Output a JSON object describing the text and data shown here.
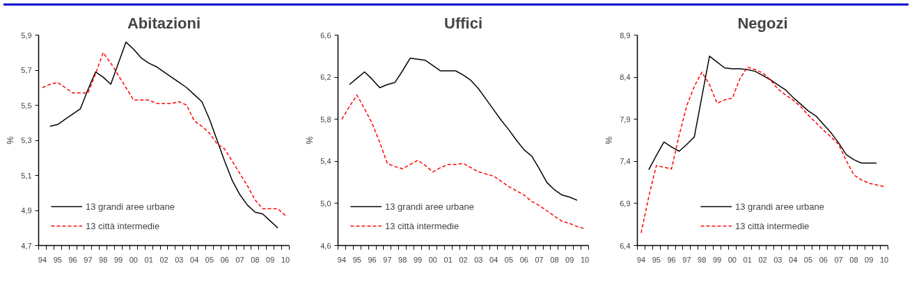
{
  "chart_data": [
    {
      "type": "line",
      "title": "Abitazioni",
      "ylabel": "%",
      "legend": "bottom left",
      "grid": false,
      "xlim": [
        1993.75,
        2010.25
      ],
      "xticks": [
        {
          "value": 1993.75,
          "label": null
        },
        {
          "value": 1994,
          "label": "94"
        },
        {
          "value": 1994.25,
          "label": null
        },
        {
          "value": 1994.75,
          "label": null
        },
        {
          "value": 1995,
          "label": "95"
        },
        {
          "value": 1995.25,
          "label": null
        },
        {
          "value": 1995.75,
          "label": null
        },
        {
          "value": 1996,
          "label": "96"
        },
        {
          "value": 1996.25,
          "label": null
        },
        {
          "value": 1996.75,
          "label": null
        },
        {
          "value": 1997,
          "label": "97"
        },
        {
          "value": 1997.25,
          "label": null
        },
        {
          "value": 1997.75,
          "label": null
        },
        {
          "value": 1998,
          "label": "98"
        },
        {
          "value": 1998.25,
          "label": null
        },
        {
          "value": 1998.75,
          "label": null
        },
        {
          "value": 1999,
          "label": "99"
        },
        {
          "value": 1999.25,
          "label": null
        },
        {
          "value": 1999.75,
          "label": null
        },
        {
          "value": 2000,
          "label": "00"
        },
        {
          "value": 2000.25,
          "label": null
        },
        {
          "value": 2000.75,
          "label": null
        },
        {
          "value": 2001,
          "label": "01"
        },
        {
          "value": 2001.25,
          "label": null
        },
        {
          "value": 2001.75,
          "label": null
        },
        {
          "value": 2002,
          "label": "02"
        },
        {
          "value": 2002.25,
          "label": null
        },
        {
          "value": 2002.75,
          "label": null
        },
        {
          "value": 2003,
          "label": "03"
        },
        {
          "value": 2003.25,
          "label": null
        },
        {
          "value": 2003.75,
          "label": null
        },
        {
          "value": 2004,
          "label": "04"
        },
        {
          "value": 2004.25,
          "label": null
        },
        {
          "value": 2004.75,
          "label": null
        },
        {
          "value": 2005,
          "label": "05"
        },
        {
          "value": 2005.25,
          "label": null
        },
        {
          "value": 2005.75,
          "label": null
        },
        {
          "value": 2006,
          "label": "06"
        },
        {
          "value": 2006.25,
          "label": null
        },
        {
          "value": 2006.75,
          "label": null
        },
        {
          "value": 2007,
          "label": "07"
        },
        {
          "value": 2007.25,
          "label": null
        },
        {
          "value": 2007.75,
          "label": null
        },
        {
          "value": 2008,
          "label": "08"
        },
        {
          "value": 2008.25,
          "label": null
        },
        {
          "value": 2008.75,
          "label": null
        },
        {
          "value": 2009,
          "label": "09"
        },
        {
          "value": 2009.25,
          "label": null
        },
        {
          "value": 2009.75,
          "label": null
        },
        {
          "value": 2010,
          "label": "10"
        },
        {
          "value": 2010.25,
          "label": null
        }
      ],
      "ylim": [
        4.7,
        5.9
      ],
      "yticks": [
        {
          "value": 4.7,
          "label": "4,7"
        },
        {
          "value": 4.9,
          "label": "4,9"
        },
        {
          "value": 5.1,
          "label": "5,1"
        },
        {
          "value": 5.3,
          "label": "5,3"
        },
        {
          "value": 5.5,
          "label": "5,5"
        },
        {
          "value": 5.7,
          "label": "5,7"
        },
        {
          "value": 5.9,
          "label": "5,9"
        }
      ],
      "series": [
        {
          "name": "13 grandi aree urbane",
          "color": "#000000",
          "line_style": "solid",
          "x": [
            1994.5,
            1995,
            1995.5,
            1996,
            1996.5,
            1997,
            1997.5,
            1998,
            1998.5,
            1999,
            1999.5,
            2000,
            2000.5,
            2001,
            2001.5,
            2002,
            2002.5,
            2003,
            2003.5,
            2004,
            2004.5,
            2005,
            2005.5,
            2006,
            2006.5,
            2007,
            2007.5,
            2008,
            2008.5,
            2009,
            2009.5
          ],
          "values": [
            5.38,
            5.39,
            5.42,
            5.45,
            5.48,
            5.59,
            5.69,
            5.66,
            5.62,
            5.74,
            5.86,
            5.82,
            5.77,
            5.74,
            5.72,
            5.69,
            5.66,
            5.63,
            5.6,
            5.56,
            5.52,
            5.42,
            5.3,
            5.18,
            5.07,
            4.99,
            4.93,
            4.89,
            4.88,
            4.84,
            4.8
          ]
        },
        {
          "name": "13 città intermedie",
          "color": "#ff0000",
          "line_style": "dashed",
          "x": [
            1994,
            1994.5,
            1995,
            1995.5,
            1996,
            1996.5,
            1997,
            1997.5,
            1998,
            1998.5,
            1999,
            1999.5,
            2000,
            2000.5,
            2001,
            2001.5,
            2002,
            2002.5,
            2003,
            2003.5,
            2004,
            2004.5,
            2005,
            2005.5,
            2006,
            2006.5,
            2007,
            2007.5,
            2008,
            2008.5,
            2009,
            2009.5,
            2010
          ],
          "values": [
            5.6,
            5.62,
            5.63,
            5.6,
            5.57,
            5.57,
            5.57,
            5.68,
            5.8,
            5.74,
            5.67,
            5.6,
            5.53,
            5.53,
            5.53,
            5.51,
            5.51,
            5.51,
            5.52,
            5.5,
            5.41,
            5.38,
            5.34,
            5.28,
            5.25,
            5.18,
            5.11,
            5.04,
            4.96,
            4.91,
            4.91,
            4.91,
            4.87
          ]
        }
      ]
    },
    {
      "type": "line",
      "title": "Uffici",
      "ylabel": "%",
      "legend": "bottom left",
      "grid": false,
      "xlim": [
        1993.75,
        2010.25
      ],
      "xticks": [
        {
          "value": 1993.75,
          "label": null
        },
        {
          "value": 1994,
          "label": "94"
        },
        {
          "value": 1994.25,
          "label": null
        },
        {
          "value": 1994.75,
          "label": null
        },
        {
          "value": 1995,
          "label": "95"
        },
        {
          "value": 1995.25,
          "label": null
        },
        {
          "value": 1995.75,
          "label": null
        },
        {
          "value": 1996,
          "label": "96"
        },
        {
          "value": 1996.25,
          "label": null
        },
        {
          "value": 1996.75,
          "label": null
        },
        {
          "value": 1997,
          "label": "97"
        },
        {
          "value": 1997.25,
          "label": null
        },
        {
          "value": 1997.75,
          "label": null
        },
        {
          "value": 1998,
          "label": "98"
        },
        {
          "value": 1998.25,
          "label": null
        },
        {
          "value": 1998.75,
          "label": null
        },
        {
          "value": 1999,
          "label": "99"
        },
        {
          "value": 1999.25,
          "label": null
        },
        {
          "value": 1999.75,
          "label": null
        },
        {
          "value": 2000,
          "label": "00"
        },
        {
          "value": 2000.25,
          "label": null
        },
        {
          "value": 2000.75,
          "label": null
        },
        {
          "value": 2001,
          "label": "01"
        },
        {
          "value": 2001.25,
          "label": null
        },
        {
          "value": 2001.75,
          "label": null
        },
        {
          "value": 2002,
          "label": "02"
        },
        {
          "value": 2002.25,
          "label": null
        },
        {
          "value": 2002.75,
          "label": null
        },
        {
          "value": 2003,
          "label": "03"
        },
        {
          "value": 2003.25,
          "label": null
        },
        {
          "value": 2003.75,
          "label": null
        },
        {
          "value": 2004,
          "label": "04"
        },
        {
          "value": 2004.25,
          "label": null
        },
        {
          "value": 2004.75,
          "label": null
        },
        {
          "value": 2005,
          "label": "05"
        },
        {
          "value": 2005.25,
          "label": null
        },
        {
          "value": 2005.75,
          "label": null
        },
        {
          "value": 2006,
          "label": "06"
        },
        {
          "value": 2006.25,
          "label": null
        },
        {
          "value": 2006.75,
          "label": null
        },
        {
          "value": 2007,
          "label": "07"
        },
        {
          "value": 2007.25,
          "label": null
        },
        {
          "value": 2007.75,
          "label": null
        },
        {
          "value": 2008,
          "label": "08"
        },
        {
          "value": 2008.25,
          "label": null
        },
        {
          "value": 2008.75,
          "label": null
        },
        {
          "value": 2009,
          "label": "09"
        },
        {
          "value": 2009.25,
          "label": null
        },
        {
          "value": 2009.75,
          "label": null
        },
        {
          "value": 2010,
          "label": "10"
        },
        {
          "value": 2010.25,
          "label": null
        }
      ],
      "ylim": [
        4.6,
        6.6
      ],
      "yticks": [
        {
          "value": 4.6,
          "label": "4,6"
        },
        {
          "value": 5.0,
          "label": "5,0"
        },
        {
          "value": 5.4,
          "label": "5,4"
        },
        {
          "value": 5.8,
          "label": "5,8"
        },
        {
          "value": 6.2,
          "label": "6,2"
        },
        {
          "value": 6.6,
          "label": "6,6"
        }
      ],
      "series": [
        {
          "name": "13 grandi aree urbane",
          "color": "#000000",
          "line_style": "solid",
          "x": [
            1994.5,
            1995,
            1995.5,
            1996,
            1996.5,
            1997,
            1997.5,
            1998,
            1998.5,
            1999,
            1999.5,
            2000,
            2000.5,
            2001,
            2001.5,
            2002,
            2002.5,
            2003,
            2003.5,
            2004,
            2004.5,
            2005,
            2005.5,
            2006,
            2006.5,
            2007,
            2007.5,
            2008,
            2008.5,
            2009,
            2009.5
          ],
          "values": [
            6.13,
            6.19,
            6.25,
            6.18,
            6.1,
            6.13,
            6.15,
            6.26,
            6.38,
            6.37,
            6.36,
            6.31,
            6.26,
            6.26,
            6.26,
            6.22,
            6.17,
            6.09,
            5.99,
            5.89,
            5.79,
            5.7,
            5.6,
            5.51,
            5.45,
            5.33,
            5.2,
            5.13,
            5.08,
            5.06,
            5.03
          ]
        },
        {
          "name": "13 città intermedie",
          "color": "#ff0000",
          "line_style": "dashed",
          "x": [
            1994,
            1994.5,
            1995,
            1995.5,
            1996,
            1996.5,
            1997,
            1997.5,
            1998,
            1998.5,
            1999,
            1999.5,
            2000,
            2000.5,
            2001,
            2001.5,
            2002,
            2002.5,
            2003,
            2003.5,
            2004,
            2004.5,
            2005,
            2005.5,
            2006,
            2006.5,
            2007,
            2007.5,
            2008,
            2008.5,
            2009,
            2009.5,
            2010
          ],
          "values": [
            5.8,
            5.92,
            6.03,
            5.9,
            5.76,
            5.58,
            5.38,
            5.35,
            5.33,
            5.37,
            5.41,
            5.36,
            5.3,
            5.34,
            5.37,
            5.37,
            5.38,
            5.34,
            5.3,
            5.28,
            5.26,
            5.21,
            5.16,
            5.12,
            5.08,
            5.02,
            4.98,
            4.93,
            4.88,
            4.83,
            4.81,
            4.78,
            4.76
          ]
        }
      ]
    },
    {
      "type": "line",
      "title": "Negozi",
      "ylabel": "%",
      "legend": "bottom",
      "grid": false,
      "xlim": [
        1993.75,
        2010.25
      ],
      "xticks": [
        {
          "value": 1993.75,
          "label": null
        },
        {
          "value": 1994,
          "label": "94"
        },
        {
          "value": 1994.25,
          "label": null
        },
        {
          "value": 1994.75,
          "label": null
        },
        {
          "value": 1995,
          "label": "95"
        },
        {
          "value": 1995.25,
          "label": null
        },
        {
          "value": 1995.75,
          "label": null
        },
        {
          "value": 1996,
          "label": "96"
        },
        {
          "value": 1996.25,
          "label": null
        },
        {
          "value": 1996.75,
          "label": null
        },
        {
          "value": 1997,
          "label": "97"
        },
        {
          "value": 1997.25,
          "label": null
        },
        {
          "value": 1997.75,
          "label": null
        },
        {
          "value": 1998,
          "label": "98"
        },
        {
          "value": 1998.25,
          "label": null
        },
        {
          "value": 1998.75,
          "label": null
        },
        {
          "value": 1999,
          "label": "99"
        },
        {
          "value": 1999.25,
          "label": null
        },
        {
          "value": 1999.75,
          "label": null
        },
        {
          "value": 2000,
          "label": "00"
        },
        {
          "value": 2000.25,
          "label": null
        },
        {
          "value": 2000.75,
          "label": null
        },
        {
          "value": 2001,
          "label": "01"
        },
        {
          "value": 2001.25,
          "label": null
        },
        {
          "value": 2001.75,
          "label": null
        },
        {
          "value": 2002,
          "label": "02"
        },
        {
          "value": 2002.25,
          "label": null
        },
        {
          "value": 2002.75,
          "label": null
        },
        {
          "value": 2003,
          "label": "03"
        },
        {
          "value": 2003.25,
          "label": null
        },
        {
          "value": 2003.75,
          "label": null
        },
        {
          "value": 2004,
          "label": "04"
        },
        {
          "value": 2004.25,
          "label": null
        },
        {
          "value": 2004.75,
          "label": null
        },
        {
          "value": 2005,
          "label": "05"
        },
        {
          "value": 2005.25,
          "label": null
        },
        {
          "value": 2005.75,
          "label": null
        },
        {
          "value": 2006,
          "label": "06"
        },
        {
          "value": 2006.25,
          "label": null
        },
        {
          "value": 2006.75,
          "label": null
        },
        {
          "value": 2007,
          "label": "07"
        },
        {
          "value": 2007.25,
          "label": null
        },
        {
          "value": 2007.75,
          "label": null
        },
        {
          "value": 2008,
          "label": "08"
        },
        {
          "value": 2008.25,
          "label": null
        },
        {
          "value": 2008.75,
          "label": null
        },
        {
          "value": 2009,
          "label": "09"
        },
        {
          "value": 2009.25,
          "label": null
        },
        {
          "value": 2009.75,
          "label": null
        },
        {
          "value": 2010,
          "label": "10"
        },
        {
          "value": 2010.25,
          "label": null
        }
      ],
      "ylim": [
        6.4,
        8.9
      ],
      "yticks": [
        {
          "value": 6.4,
          "label": "6,4"
        },
        {
          "value": 6.9,
          "label": "6,9"
        },
        {
          "value": 7.4,
          "label": "7,4"
        },
        {
          "value": 7.9,
          "label": "7,9"
        },
        {
          "value": 8.4,
          "label": "8,4"
        },
        {
          "value": 8.9,
          "label": "8,9"
        }
      ],
      "series": [
        {
          "name": "13 grandi aree urbane",
          "color": "#000000",
          "line_style": "solid",
          "x": [
            1994.5,
            1995,
            1995.5,
            1996,
            1996.5,
            1997,
            1997.5,
            1998,
            1998.5,
            1999,
            1999.5,
            2000,
            2000.5,
            2001,
            2001.5,
            2002,
            2002.5,
            2003,
            2003.5,
            2004,
            2004.5,
            2005,
            2005.5,
            2006,
            2006.5,
            2007,
            2007.5,
            2008,
            2008.5,
            2009,
            2009.5
          ],
          "values": [
            7.3,
            7.47,
            7.63,
            7.57,
            7.52,
            7.6,
            7.69,
            8.17,
            8.65,
            8.58,
            8.51,
            8.5,
            8.5,
            8.49,
            8.47,
            8.42,
            8.37,
            8.31,
            8.25,
            8.16,
            8.08,
            8.0,
            7.94,
            7.84,
            7.74,
            7.62,
            7.48,
            7.42,
            7.38,
            7.38,
            7.38
          ]
        },
        {
          "name": "13 città intermedie",
          "color": "#ff0000",
          "line_style": "dashed",
          "x": [
            1994,
            1994.5,
            1995,
            1995.5,
            1996,
            1996.5,
            1997,
            1997.5,
            1998,
            1998.5,
            1999,
            1999.5,
            2000,
            2000.5,
            2001,
            2001.5,
            2002,
            2002.5,
            2003,
            2003.5,
            2004,
            2004.5,
            2005,
            2005.5,
            2006,
            2006.5,
            2007,
            2007.5,
            2008,
            2008.5,
            2009,
            2009.5,
            2010
          ],
          "values": [
            6.55,
            6.98,
            7.35,
            7.33,
            7.31,
            7.71,
            8.06,
            8.29,
            8.46,
            8.31,
            8.09,
            8.13,
            8.15,
            8.38,
            8.52,
            8.49,
            8.45,
            8.37,
            8.26,
            8.19,
            8.13,
            8.05,
            7.95,
            7.86,
            7.77,
            7.69,
            7.6,
            7.41,
            7.24,
            7.18,
            7.14,
            7.12,
            7.1
          ]
        }
      ]
    }
  ]
}
